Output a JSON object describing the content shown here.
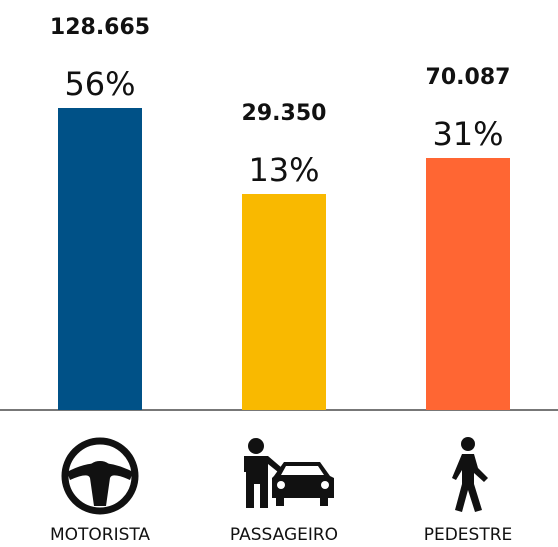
{
  "chart_data": {
    "type": "bar",
    "categories": [
      "MOTORISTA",
      "PASSAGEIRO",
      "PEDESTRE"
    ],
    "values": [
      56,
      13,
      31
    ],
    "value_labels": [
      "56%",
      "13%",
      "31%"
    ],
    "counts": [
      128665,
      29350,
      70087
    ],
    "count_labels": [
      "128.665",
      "29.350",
      "70.087"
    ],
    "colors": [
      "#005187",
      "#f9b900",
      "#ff6633"
    ]
  }
}
